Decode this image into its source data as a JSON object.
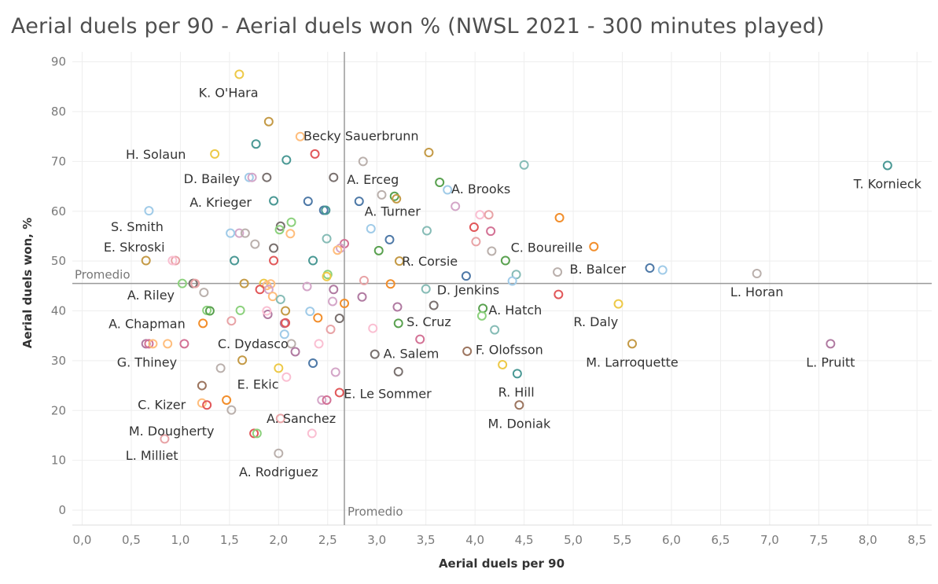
{
  "title": "Aerial duels per 90 - Aerial duels won % (NWSL 2021 - 300 minutes played)",
  "colors": {
    "palette": [
      "#4e79a7",
      "#f28e2b",
      "#e15759",
      "#76b7b2",
      "#59a14f",
      "#edc948",
      "#b07aa1",
      "#ff9da7",
      "#9c755f",
      "#bab0ac",
      "#499894",
      "#a0cbe8",
      "#ffbe7d",
      "#8cd17d",
      "#b6992d",
      "#d37295",
      "#fabfd2",
      "#86bcb6",
      "#79706e",
      "#d4a6c8",
      "#c49a46",
      "#e8a3a6"
    ]
  },
  "chart_data": {
    "type": "scatter",
    "title": "Aerial duels per 90 - Aerial duels won % (NWSL 2021 - 300 minutes played)",
    "xlabel": "Aerial duels per 90",
    "ylabel": "Aerial duels won, %",
    "xlim": [
      -0.1,
      8.65
    ],
    "ylim": [
      -3,
      92
    ],
    "x_ticks": [
      "0,0",
      "0,5",
      "1,0",
      "1,5",
      "2,0",
      "2,5",
      "3,0",
      "3,5",
      "4,0",
      "4,5",
      "5,0",
      "5,5",
      "6,0",
      "6,5",
      "7,0",
      "7,5",
      "8,0",
      "8,5"
    ],
    "y_ticks": [
      "0",
      "10",
      "20",
      "30",
      "40",
      "50",
      "60",
      "70",
      "80",
      "90"
    ],
    "grid": true,
    "reference_lines": {
      "x_average": {
        "value": 2.67,
        "label": "Promedio"
      },
      "y_average": {
        "value": 45.5,
        "label": "Promedio"
      }
    },
    "points": [
      {
        "x": 1.6,
        "y": 87.5,
        "c": 5,
        "label": "K. O'Hara"
      },
      {
        "x": 1.9,
        "y": 78,
        "c": 20
      },
      {
        "x": 2.22,
        "y": 75,
        "c": 12,
        "label": "Becky Sauerbrunn"
      },
      {
        "x": 1.35,
        "y": 71.5,
        "c": 5,
        "label": "H. Solaun"
      },
      {
        "x": 1.77,
        "y": 73.5,
        "c": 10
      },
      {
        "x": 2.08,
        "y": 70.3,
        "c": 10
      },
      {
        "x": 2.37,
        "y": 71.5,
        "c": 2
      },
      {
        "x": 2.86,
        "y": 70,
        "c": 9
      },
      {
        "x": 3.53,
        "y": 71.8,
        "c": 20
      },
      {
        "x": 4.5,
        "y": 69.3,
        "c": 17
      },
      {
        "x": 8.2,
        "y": 69.2,
        "c": 10,
        "label": "T. Kornieck"
      },
      {
        "x": 1.7,
        "y": 66.8,
        "c": 11,
        "label": "D. Bailey"
      },
      {
        "x": 1.73,
        "y": 66.8,
        "c": 19
      },
      {
        "x": 1.88,
        "y": 66.8,
        "c": 18
      },
      {
        "x": 2.56,
        "y": 66.8,
        "c": 18,
        "label": "A. Erceg"
      },
      {
        "x": 3.64,
        "y": 65.8,
        "c": 4
      },
      {
        "x": 3.72,
        "y": 64.3,
        "c": 11,
        "label": "A. Brooks"
      },
      {
        "x": 3.05,
        "y": 63.3,
        "c": 9
      },
      {
        "x": 3.18,
        "y": 63,
        "c": 4
      },
      {
        "x": 3.2,
        "y": 62.5,
        "c": 20
      },
      {
        "x": 1.95,
        "y": 62.1,
        "c": 10,
        "label": "A. Krieger"
      },
      {
        "x": 2.3,
        "y": 62,
        "c": 0
      },
      {
        "x": 2.82,
        "y": 62,
        "c": 0
      },
      {
        "x": 2.46,
        "y": 60.2,
        "c": 0
      },
      {
        "x": 2.48,
        "y": 60.2,
        "c": 10
      },
      {
        "x": 3.8,
        "y": 61,
        "c": 19
      },
      {
        "x": 4.05,
        "y": 59.3,
        "c": 16
      },
      {
        "x": 4.14,
        "y": 59.3,
        "c": 21
      },
      {
        "x": 4.86,
        "y": 58.7,
        "c": 1
      },
      {
        "x": 0.68,
        "y": 60.1,
        "c": 11,
        "label": "S. Smith"
      },
      {
        "x": 2.02,
        "y": 57,
        "c": 18
      },
      {
        "x": 2.13,
        "y": 57.8,
        "c": 13
      },
      {
        "x": 2.01,
        "y": 56.3,
        "c": 13
      },
      {
        "x": 2.12,
        "y": 55.5,
        "c": 12
      },
      {
        "x": 1.6,
        "y": 55.6,
        "c": 19
      },
      {
        "x": 1.66,
        "y": 55.6,
        "c": 9
      },
      {
        "x": 1.51,
        "y": 55.6,
        "c": 11
      },
      {
        "x": 2.94,
        "y": 56.5,
        "c": 11
      },
      {
        "x": 3.51,
        "y": 56.1,
        "c": 17
      },
      {
        "x": 3.99,
        "y": 56.8,
        "c": 2
      },
      {
        "x": 4.16,
        "y": 56,
        "c": 15
      },
      {
        "x": 2.49,
        "y": 54.5,
        "c": 17
      },
      {
        "x": 1.76,
        "y": 53.4,
        "c": 9
      },
      {
        "x": 2.67,
        "y": 53.5,
        "c": 15
      },
      {
        "x": 2.63,
        "y": 52.6,
        "c": 19
      },
      {
        "x": 2.6,
        "y": 52.2,
        "c": 12
      },
      {
        "x": 3.13,
        "y": 54.3,
        "c": 0
      },
      {
        "x": 4.01,
        "y": 53.9,
        "c": 21
      },
      {
        "x": 4.17,
        "y": 52,
        "c": 9
      },
      {
        "x": 5.21,
        "y": 52.9,
        "c": 1,
        "label": "C. Boureille"
      },
      {
        "x": 3.02,
        "y": 52.1,
        "c": 4
      },
      {
        "x": 1.95,
        "y": 52.6,
        "c": 18
      },
      {
        "x": 0.65,
        "y": 50.1,
        "c": 20,
        "label": "E. Skroski"
      },
      {
        "x": 0.95,
        "y": 50.1,
        "c": 21
      },
      {
        "x": 0.92,
        "y": 50.1,
        "c": 16
      },
      {
        "x": 1.55,
        "y": 50.1,
        "c": 10
      },
      {
        "x": 1.95,
        "y": 50.1,
        "c": 2
      },
      {
        "x": 2.35,
        "y": 50.1,
        "c": 10
      },
      {
        "x": 3.23,
        "y": 50,
        "c": 20,
        "label": "R. Corsie"
      },
      {
        "x": 4.31,
        "y": 50.1,
        "c": 4
      },
      {
        "x": 2.5,
        "y": 47.3,
        "c": 13
      },
      {
        "x": 2.49,
        "y": 46.9,
        "c": 5
      },
      {
        "x": 3.91,
        "y": 47,
        "c": 0
      },
      {
        "x": 4.42,
        "y": 47.3,
        "c": 17
      },
      {
        "x": 4.38,
        "y": 46,
        "c": 11
      },
      {
        "x": 4.84,
        "y": 47.8,
        "c": 9
      },
      {
        "x": 5.78,
        "y": 48.6,
        "c": 0,
        "label": "B. Balcer"
      },
      {
        "x": 5.91,
        "y": 48.2,
        "c": 11
      },
      {
        "x": 6.87,
        "y": 47.5,
        "c": 9,
        "label": "L. Horan"
      },
      {
        "x": 2.87,
        "y": 46.1,
        "c": 21
      },
      {
        "x": 1.02,
        "y": 45.5,
        "c": 13
      },
      {
        "x": 1.13,
        "y": 45.5,
        "c": 18
      },
      {
        "x": 1.15,
        "y": 45.5,
        "c": 21
      },
      {
        "x": 1.65,
        "y": 45.5,
        "c": 20
      },
      {
        "x": 1.85,
        "y": 45.5,
        "c": 5
      },
      {
        "x": 1.88,
        "y": 45.1,
        "c": 12
      },
      {
        "x": 1.92,
        "y": 45.4,
        "c": 12
      },
      {
        "x": 1.81,
        "y": 44.3,
        "c": 2
      },
      {
        "x": 1.9,
        "y": 44.3,
        "c": 19
      },
      {
        "x": 2.29,
        "y": 44.9,
        "c": 19
      },
      {
        "x": 2.56,
        "y": 44.3,
        "c": 6
      },
      {
        "x": 3.14,
        "y": 45.4,
        "c": 1
      },
      {
        "x": 3.5,
        "y": 44.4,
        "c": 17,
        "label": "D. Jenkins"
      },
      {
        "x": 1.24,
        "y": 43.7,
        "c": 9,
        "label": "A. Riley"
      },
      {
        "x": 1.94,
        "y": 42.9,
        "c": 12
      },
      {
        "x": 2.02,
        "y": 42.3,
        "c": 17
      },
      {
        "x": 2.55,
        "y": 41.9,
        "c": 19
      },
      {
        "x": 2.85,
        "y": 42.8,
        "c": 6
      },
      {
        "x": 2.67,
        "y": 41.5,
        "c": 1
      },
      {
        "x": 3.58,
        "y": 41.1,
        "c": 18
      },
      {
        "x": 4.85,
        "y": 43.3,
        "c": 2
      },
      {
        "x": 5.46,
        "y": 41.4,
        "c": 5,
        "label": "R. Daly"
      },
      {
        "x": 1.27,
        "y": 40.1,
        "c": 13
      },
      {
        "x": 1.3,
        "y": 40,
        "c": 4
      },
      {
        "x": 1.61,
        "y": 40.1,
        "c": 13
      },
      {
        "x": 1.89,
        "y": 39.3,
        "c": 6
      },
      {
        "x": 1.88,
        "y": 40,
        "c": 16
      },
      {
        "x": 2.07,
        "y": 40,
        "c": 20
      },
      {
        "x": 2.32,
        "y": 39.9,
        "c": 11
      },
      {
        "x": 2.4,
        "y": 38.6,
        "c": 1
      },
      {
        "x": 2.62,
        "y": 38.5,
        "c": 18
      },
      {
        "x": 3.21,
        "y": 40.8,
        "c": 6
      },
      {
        "x": 4.08,
        "y": 40.5,
        "c": 4,
        "label": "A. Hatch"
      },
      {
        "x": 4.07,
        "y": 39,
        "c": 13
      },
      {
        "x": 1.23,
        "y": 37.5,
        "c": 1,
        "label": "A. Chapman"
      },
      {
        "x": 1.52,
        "y": 38,
        "c": 21
      },
      {
        "x": 2.06,
        "y": 37.5,
        "c": 6
      },
      {
        "x": 2.07,
        "y": 37.6,
        "c": 2
      },
      {
        "x": 3.22,
        "y": 37.5,
        "c": 4,
        "label": "S. Cruz"
      },
      {
        "x": 2.96,
        "y": 36.5,
        "c": 16
      },
      {
        "x": 2.53,
        "y": 36.3,
        "c": 21
      },
      {
        "x": 4.2,
        "y": 36.2,
        "c": 17
      },
      {
        "x": 2.06,
        "y": 35.3,
        "c": 11
      },
      {
        "x": 0.65,
        "y": 33.4,
        "c": 6,
        "label": "G. Thiney"
      },
      {
        "x": 0.68,
        "y": 33.4,
        "c": 15
      },
      {
        "x": 0.72,
        "y": 33.4,
        "c": 12
      },
      {
        "x": 0.87,
        "y": 33.4,
        "c": 12
      },
      {
        "x": 1.04,
        "y": 33.4,
        "c": 15
      },
      {
        "x": 2.13,
        "y": 33.4,
        "c": 9
      },
      {
        "x": 2.17,
        "y": 31.8,
        "c": 6
      },
      {
        "x": 2.41,
        "y": 33.4,
        "c": 16
      },
      {
        "x": 3.44,
        "y": 34.3,
        "c": 15
      },
      {
        "x": 5.6,
        "y": 33.4,
        "c": 20,
        "label": "M. Larroquette"
      },
      {
        "x": 7.62,
        "y": 33.4,
        "c": 6,
        "label": "L. Pruitt"
      },
      {
        "x": 1.63,
        "y": 30.1,
        "c": 20,
        "label": "C. Dydasco"
      },
      {
        "x": 2.98,
        "y": 31.3,
        "c": 18
      },
      {
        "x": 2.35,
        "y": 29.5,
        "c": 0
      },
      {
        "x": 3.92,
        "y": 31.9,
        "c": 8,
        "label": "F. Olofsson"
      },
      {
        "x": 4.28,
        "y": 29.2,
        "c": 5
      },
      {
        "x": 1.41,
        "y": 28.5,
        "c": 9
      },
      {
        "x": 2.0,
        "y": 28.5,
        "c": 5
      },
      {
        "x": 2.08,
        "y": 26.7,
        "c": 16
      },
      {
        "x": 2.58,
        "y": 27.7,
        "c": 19
      },
      {
        "x": 3.22,
        "y": 27.8,
        "c": 18
      },
      {
        "x": 4.43,
        "y": 27.4,
        "c": 10,
        "label": "R. Hill"
      },
      {
        "x": 1.22,
        "y": 25,
        "c": 8,
        "label": "E. Ekic"
      },
      {
        "x": 2.62,
        "y": 23.6,
        "c": 2,
        "label": "E. Le Sommer"
      },
      {
        "x": 1.47,
        "y": 22.1,
        "c": 1
      },
      {
        "x": 2.44,
        "y": 22.1,
        "c": 19
      },
      {
        "x": 2.49,
        "y": 22.1,
        "c": 15
      },
      {
        "x": 1.22,
        "y": 21.5,
        "c": 12
      },
      {
        "x": 1.27,
        "y": 21.1,
        "c": 2,
        "label": "C. Kizer"
      },
      {
        "x": 1.52,
        "y": 20.1,
        "c": 9
      },
      {
        "x": 4.45,
        "y": 21.1,
        "c": 8,
        "label": "M. Doniak"
      },
      {
        "x": 2.02,
        "y": 18.4,
        "c": 21,
        "label": "A. Sanchez"
      },
      {
        "x": 1.75,
        "y": 15.4,
        "c": 2,
        "label": "M. Dougherty"
      },
      {
        "x": 1.78,
        "y": 15.4,
        "c": 13
      },
      {
        "x": 2.34,
        "y": 15.4,
        "c": 16
      },
      {
        "x": 0.84,
        "y": 14.3,
        "c": 21,
        "label": "L. Milliet"
      },
      {
        "x": 2.0,
        "y": 11.4,
        "c": 9,
        "label": "A. Rodriguez"
      }
    ],
    "labels": [
      {
        "text": "K. O'Hara",
        "x": 1.49,
        "y": 83.7
      },
      {
        "text": "Becky Sauerbrunn",
        "x": 2.84,
        "y": 75
      },
      {
        "text": "H. Solaun",
        "x": 0.75,
        "y": 71.3
      },
      {
        "text": "D. Bailey",
        "x": 1.32,
        "y": 66.4
      },
      {
        "text": "A. Erceg",
        "x": 2.96,
        "y": 66.3
      },
      {
        "text": "A. Brooks",
        "x": 4.06,
        "y": 64.4
      },
      {
        "text": "T. Kornieck",
        "x": 8.2,
        "y": 65.4
      },
      {
        "text": "A. Krieger",
        "x": 1.41,
        "y": 61.7
      },
      {
        "text": "A. Turner",
        "x": 3.16,
        "y": 59.9
      },
      {
        "text": "S. Smith",
        "x": 0.56,
        "y": 56.8
      },
      {
        "text": "E. Skroski",
        "x": 0.53,
        "y": 52.7
      },
      {
        "text": "C. Boureille",
        "x": 4.73,
        "y": 52.6
      },
      {
        "text": "R. Corsie",
        "x": 3.54,
        "y": 49.9
      },
      {
        "text": "B. Balcer",
        "x": 5.25,
        "y": 48.3
      },
      {
        "text": "D. Jenkins",
        "x": 3.93,
        "y": 44.1
      },
      {
        "text": "L. Horan",
        "x": 6.87,
        "y": 43.7
      },
      {
        "text": "A. Riley",
        "x": 0.7,
        "y": 43.1
      },
      {
        "text": "A. Hatch",
        "x": 4.41,
        "y": 40.1
      },
      {
        "text": "R. Daly",
        "x": 5.23,
        "y": 37.7
      },
      {
        "text": "A. Chapman",
        "x": 0.66,
        "y": 37.3
      },
      {
        "text": "S. Cruz",
        "x": 3.53,
        "y": 37.7
      },
      {
        "text": "C. Dydasco",
        "x": 1.74,
        "y": 33.3
      },
      {
        "text": "G. Thiney",
        "x": 0.66,
        "y": 29.6
      },
      {
        "text": "A. Salem",
        "x": 3.35,
        "y": 31.3
      },
      {
        "text": "F. Olofsson",
        "x": 4.35,
        "y": 32.1
      },
      {
        "text": "M. Larroquette",
        "x": 5.6,
        "y": 29.6
      },
      {
        "text": "L. Pruitt",
        "x": 7.62,
        "y": 29.6
      },
      {
        "text": "E. Ekic",
        "x": 1.79,
        "y": 25.2
      },
      {
        "text": "E. Le Sommer",
        "x": 3.11,
        "y": 23.3
      },
      {
        "text": "R. Hill",
        "x": 4.42,
        "y": 23.6
      },
      {
        "text": "C. Kizer",
        "x": 0.81,
        "y": 21.1
      },
      {
        "text": "A. Sanchez",
        "x": 2.23,
        "y": 18.3
      },
      {
        "text": "M. Doniak",
        "x": 4.45,
        "y": 17.3
      },
      {
        "text": "M. Dougherty",
        "x": 0.91,
        "y": 15.8
      },
      {
        "text": "L. Milliet",
        "x": 0.71,
        "y": 10.9
      },
      {
        "text": "A. Rodriguez",
        "x": 2.0,
        "y": 7.6
      }
    ]
  }
}
